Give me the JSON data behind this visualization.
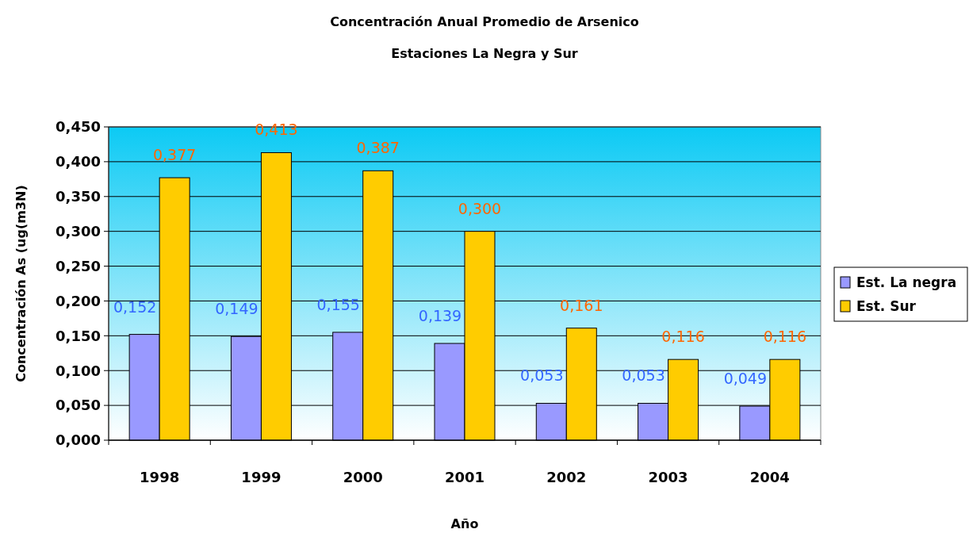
{
  "chart_data": {
    "type": "bar",
    "title": "Concentración Anual Promedio de Arsenico",
    "subtitle": "Estaciones La Negra y Sur",
    "xlabel": "Año",
    "ylabel": "Concentración As (ug(m3N)",
    "categories": [
      "1998",
      "1999",
      "2000",
      "2001",
      "2002",
      "2003",
      "2004"
    ],
    "series": [
      {
        "name": "Est. La negra",
        "color": "#9999ff",
        "values": [
          0.152,
          0.149,
          0.155,
          0.139,
          0.053,
          0.053,
          0.049
        ],
        "value_labels": [
          "0,152",
          "0,149",
          "0,155",
          "0,139",
          "0,053",
          "0,053",
          "0,049"
        ]
      },
      {
        "name": "Est. Sur",
        "color": "#ffcc00",
        "values": [
          0.377,
          0.413,
          0.387,
          0.3,
          0.161,
          0.116,
          0.116
        ],
        "value_labels": [
          "0,377",
          "0,413",
          "0,387",
          "0,300",
          "0,161",
          "0,116",
          "0,116"
        ]
      }
    ],
    "ylim": [
      0,
      0.45
    ],
    "yticks": [
      {
        "value": 0,
        "label": "0,000"
      },
      {
        "value": 0.05,
        "label": "0,050"
      },
      {
        "value": 0.1,
        "label": "0,100"
      },
      {
        "value": 0.15,
        "label": "0,150"
      },
      {
        "value": 0.2,
        "label": "0,200"
      },
      {
        "value": 0.25,
        "label": "0,250"
      },
      {
        "value": 0.3,
        "label": "0,300"
      },
      {
        "value": 0.35,
        "label": "0,350"
      },
      {
        "value": 0.4,
        "label": "0,400"
      },
      {
        "value": 0.45,
        "label": "0,450"
      }
    ],
    "grid": "y",
    "legend": "right"
  }
}
